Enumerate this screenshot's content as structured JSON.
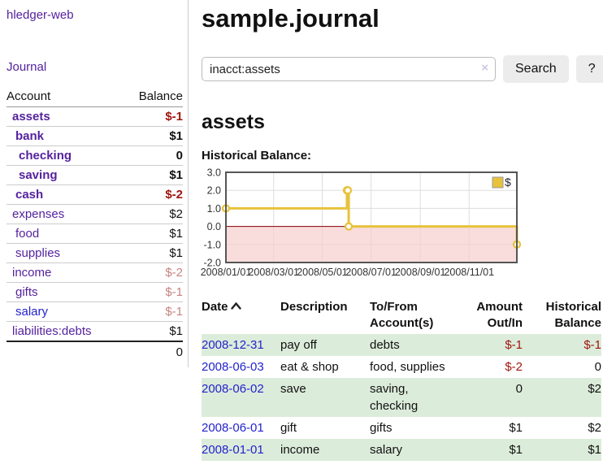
{
  "sidebar": {
    "brand": "hledger-web",
    "nav": {
      "journal": "Journal"
    },
    "accounts_table": {
      "header_account": "Account",
      "header_balance": "Balance",
      "rows": [
        {
          "name": "assets",
          "depth": 1,
          "balance": "$-1",
          "bold": true,
          "negative": "strong"
        },
        {
          "name": "bank",
          "depth": 2,
          "balance": "$1",
          "bold": true
        },
        {
          "name": "checking",
          "depth": 3,
          "balance": "0",
          "bold": true
        },
        {
          "name": "saving",
          "depth": 3,
          "balance": "$1",
          "bold": true
        },
        {
          "name": "cash",
          "depth": 2,
          "balance": "$-2",
          "bold": true,
          "negative": "strong"
        },
        {
          "name": "expenses",
          "depth": 1,
          "balance": "$2"
        },
        {
          "name": "food",
          "depth": 2,
          "balance": "$1"
        },
        {
          "name": "supplies",
          "depth": 2,
          "balance": "$1"
        },
        {
          "name": "income",
          "depth": 1,
          "balance": "$-2",
          "negative": "light"
        },
        {
          "name": "gifts",
          "depth": 2,
          "balance": "$-1",
          "negative": "light"
        },
        {
          "name": "salary",
          "depth": 2,
          "balance": "$-1",
          "negative": "light",
          "link_color": "blue"
        },
        {
          "name": "liabilities:debts",
          "depth": 1,
          "balance": "$1"
        }
      ],
      "total": "0"
    }
  },
  "header": {
    "title": "sample.journal"
  },
  "search": {
    "value": "inacct:assets",
    "clear_icon": "×",
    "button_label": "Search",
    "help_label": "?"
  },
  "account_page": {
    "heading": "assets",
    "chart_label": "Historical Balance:"
  },
  "chart_data": {
    "type": "line",
    "title": "Historical Balance:",
    "step": true,
    "series": [
      {
        "name": "$",
        "color": "#e8c23c",
        "points": [
          {
            "date": "2008-01-01",
            "x": 0.0,
            "y": 1
          },
          {
            "date": "2008-06-01",
            "x": 0.416,
            "y": 2
          },
          {
            "date": "2008-06-02",
            "x": 0.419,
            "y": 2
          },
          {
            "date": "2008-06-03",
            "x": 0.422,
            "y": 0
          },
          {
            "date": "2008-12-31",
            "x": 1.0,
            "y": -1
          }
        ]
      }
    ],
    "ylim": [
      -2,
      3
    ],
    "yticks": [
      3.0,
      2.0,
      1.0,
      0.0,
      -1.0,
      -2.0
    ],
    "xticks": [
      {
        "label": "2008/01/01",
        "x": 0.0
      },
      {
        "label": "2008/03/01",
        "x": 0.164
      },
      {
        "label": "2008/05/01",
        "x": 0.331
      },
      {
        "label": "2008/07/01",
        "x": 0.499
      },
      {
        "label": "2008/09/01",
        "x": 0.668
      },
      {
        "label": "2008/11/01",
        "x": 0.836
      }
    ],
    "legend": {
      "label": "$",
      "position": "top-right"
    },
    "grid": true,
    "negative_fill": "#f7cfcf",
    "zero_line_color": "#8b0000"
  },
  "register_table": {
    "headers": {
      "date": "Date",
      "sort_icon": "chevron-up",
      "description": "Description",
      "tofrom_line1": "To/From",
      "tofrom_line2": "Account(s)",
      "amount_line1": "Amount",
      "amount_line2": "Out/In",
      "balance_line1": "Historical",
      "balance_line2": "Balance"
    },
    "rows": [
      {
        "date": "2008-12-31",
        "description": "pay off",
        "accounts": "debts",
        "amount": "$-1",
        "balance": "$-1",
        "amount_neg": true,
        "balance_neg": true,
        "green": true
      },
      {
        "date": "2008-06-03",
        "description": "eat & shop",
        "accounts": "food, supplies",
        "amount": "$-2",
        "balance": "0",
        "amount_neg": true,
        "balance_neg": false,
        "green": false
      },
      {
        "date": "2008-06-02",
        "description": "save",
        "accounts": "saving, checking",
        "amount": "0",
        "balance": "$2",
        "amount_neg": false,
        "balance_neg": false,
        "green": true
      },
      {
        "date": "2008-06-01",
        "description": "gift",
        "accounts": "gifts",
        "amount": "$1",
        "balance": "$2",
        "amount_neg": false,
        "balance_neg": false,
        "green": false
      },
      {
        "date": "2008-01-01",
        "description": "income",
        "accounts": "salary",
        "amount": "$1",
        "balance": "$1",
        "amount_neg": false,
        "balance_neg": false,
        "green": true
      }
    ]
  }
}
